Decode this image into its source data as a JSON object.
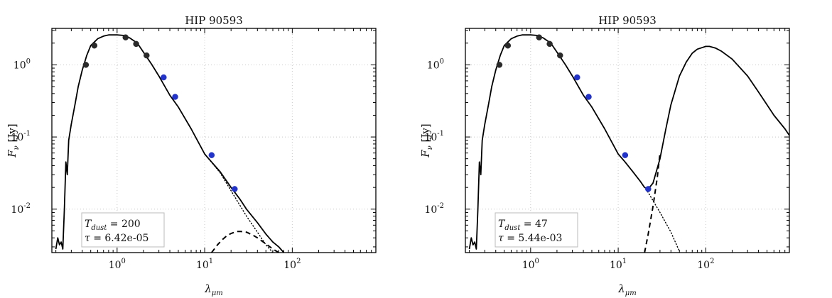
{
  "chart_data": [
    {
      "type": "line",
      "title": "HIP 90593",
      "xlabel": "λ_{μm}",
      "ylabel": "F_ν [Jy]",
      "xscale": "log",
      "yscale": "log",
      "xlim": [
        0.18,
        900
      ],
      "ylim": [
        0.0025,
        3.2
      ],
      "grid": true,
      "x_ticks": [
        {
          "value": 1,
          "base": "10",
          "exp": "0"
        },
        {
          "value": 10,
          "base": "10",
          "exp": "1"
        },
        {
          "value": 100,
          "base": "10",
          "exp": "2"
        }
      ],
      "y_ticks": [
        {
          "value": 0.01,
          "base": "10",
          "exp": "-2"
        },
        {
          "value": 0.1,
          "base": "10",
          "exp": "-1"
        },
        {
          "value": 1,
          "base": "10",
          "exp": "0"
        }
      ],
      "legend_box": {
        "line1_symbol": "T",
        "line1_sub": "dust",
        "line1_value": "= 200",
        "line2_symbol": "τ",
        "line2_value": "= 6.42e-05",
        "placement": "bottom-left"
      },
      "series": [
        {
          "style": "solid",
          "color": "#000000",
          "x": [
            0.2,
            0.21,
            0.22,
            0.23,
            0.24,
            0.25,
            0.26,
            0.27,
            0.28,
            0.3,
            0.33,
            0.36,
            0.4,
            0.45,
            0.5,
            0.6,
            0.7,
            0.8,
            0.9,
            1.0,
            1.2,
            1.4,
            1.7,
            2.0,
            2.5,
            3.0,
            4.0,
            5.0,
            7.0,
            10.0,
            12.0,
            15.0,
            20.0,
            25.0,
            30.0,
            40.0,
            50.0,
            60.0,
            70.0,
            80.0
          ],
          "y": [
            0.0028,
            0.004,
            0.0032,
            0.0035,
            0.0028,
            0.01,
            0.045,
            0.03,
            0.09,
            0.15,
            0.28,
            0.5,
            0.85,
            1.35,
            1.85,
            2.3,
            2.5,
            2.6,
            2.6,
            2.6,
            2.55,
            2.35,
            2.0,
            1.5,
            1.0,
            0.7,
            0.38,
            0.26,
            0.13,
            0.058,
            0.045,
            0.033,
            0.02,
            0.014,
            0.01,
            0.0065,
            0.0045,
            0.0035,
            0.003,
            0.0025
          ]
        },
        {
          "style": "dotted",
          "color": "#000000",
          "x": [
            10.0,
            15.0,
            20.0,
            30.0,
            40.0,
            50.0,
            60.0
          ],
          "y": [
            0.058,
            0.032,
            0.018,
            0.008,
            0.0048,
            0.0032,
            0.0025
          ]
        },
        {
          "style": "dashed",
          "color": "#000000",
          "x": [
            12.0,
            14.0,
            16.0,
            18.0,
            20.0,
            23.0,
            26.0,
            30.0,
            35.0,
            40.0,
            50.0,
            60.0,
            70.0
          ],
          "y": [
            0.0025,
            0.0032,
            0.0038,
            0.0043,
            0.0046,
            0.0049,
            0.0049,
            0.0048,
            0.0044,
            0.004,
            0.0033,
            0.0028,
            0.0025
          ]
        }
      ],
      "points": [
        {
          "x": 0.44,
          "y": 1.0,
          "color": "#2a2a2a"
        },
        {
          "x": 0.55,
          "y": 1.85,
          "color": "#2a2a2a"
        },
        {
          "x": 1.25,
          "y": 2.4,
          "color": "#2a2a2a"
        },
        {
          "x": 1.65,
          "y": 1.95,
          "color": "#2a2a2a"
        },
        {
          "x": 2.17,
          "y": 1.35,
          "color": "#2a2a2a"
        },
        {
          "x": 3.4,
          "y": 0.67,
          "color": "#2233cc"
        },
        {
          "x": 4.6,
          "y": 0.36,
          "color": "#2233cc"
        },
        {
          "x": 12.0,
          "y": 0.056,
          "color": "#2233cc"
        },
        {
          "x": 22.0,
          "y": 0.019,
          "color": "#2233cc"
        }
      ]
    },
    {
      "type": "line",
      "title": "HIP 90593",
      "xlabel": "λ_{μm}",
      "ylabel": "F_ν [Jy]",
      "xscale": "log",
      "yscale": "log",
      "xlim": [
        0.18,
        900
      ],
      "ylim": [
        0.0025,
        3.2
      ],
      "grid": true,
      "x_ticks": [
        {
          "value": 1,
          "base": "10",
          "exp": "0"
        },
        {
          "value": 10,
          "base": "10",
          "exp": "1"
        },
        {
          "value": 100,
          "base": "10",
          "exp": "2"
        }
      ],
      "y_ticks": [
        {
          "value": 0.01,
          "base": "10",
          "exp": "-2"
        },
        {
          "value": 0.1,
          "base": "10",
          "exp": "-1"
        },
        {
          "value": 1,
          "base": "10",
          "exp": "0"
        }
      ],
      "legend_box": {
        "line1_symbol": "T",
        "line1_sub": "dust",
        "line1_value": "= 47",
        "line2_symbol": "τ",
        "line2_value": "= 5.44e-03",
        "placement": "bottom-left"
      },
      "series": [
        {
          "style": "solid",
          "color": "#000000",
          "x": [
            0.2,
            0.21,
            0.22,
            0.23,
            0.24,
            0.25,
            0.26,
            0.27,
            0.28,
            0.3,
            0.33,
            0.36,
            0.4,
            0.45,
            0.5,
            0.6,
            0.7,
            0.8,
            0.9,
            1.0,
            1.2,
            1.4,
            1.7,
            2.0,
            2.5,
            3.0,
            4.0,
            5.0,
            7.0,
            10.0,
            12.0,
            15.0,
            18.0,
            20.0,
            22.0,
            25.0,
            30.0,
            35.0,
            40.0,
            50.0,
            60.0,
            70.0,
            80.0,
            100.0,
            110.0,
            130.0,
            150.0,
            200.0,
            300.0,
            400.0,
            500.0,
            600.0,
            800.0,
            900.0
          ],
          "y": [
            0.0028,
            0.004,
            0.0032,
            0.0035,
            0.0028,
            0.01,
            0.045,
            0.03,
            0.09,
            0.15,
            0.28,
            0.5,
            0.85,
            1.35,
            1.85,
            2.3,
            2.5,
            2.6,
            2.6,
            2.6,
            2.55,
            2.35,
            2.0,
            1.5,
            1.0,
            0.7,
            0.38,
            0.26,
            0.13,
            0.058,
            0.045,
            0.032,
            0.024,
            0.02,
            0.019,
            0.023,
            0.05,
            0.13,
            0.28,
            0.7,
            1.1,
            1.45,
            1.65,
            1.8,
            1.8,
            1.7,
            1.55,
            1.2,
            0.7,
            0.42,
            0.28,
            0.2,
            0.13,
            0.105
          ]
        },
        {
          "style": "dotted",
          "color": "#000000",
          "x": [
            18.0,
            22.0,
            30.0,
            40.0,
            50.0
          ],
          "y": [
            0.024,
            0.017,
            0.009,
            0.0048,
            0.0026
          ]
        },
        {
          "style": "dashed",
          "color": "#000000",
          "x": [
            20.0,
            22.0,
            25.0,
            28.0,
            30.0
          ],
          "y": [
            0.0025,
            0.0045,
            0.011,
            0.028,
            0.06
          ]
        }
      ],
      "points": [
        {
          "x": 0.44,
          "y": 1.0,
          "color": "#2a2a2a"
        },
        {
          "x": 0.55,
          "y": 1.85,
          "color": "#2a2a2a"
        },
        {
          "x": 1.25,
          "y": 2.4,
          "color": "#2a2a2a"
        },
        {
          "x": 1.65,
          "y": 1.95,
          "color": "#2a2a2a"
        },
        {
          "x": 2.17,
          "y": 1.35,
          "color": "#2a2a2a"
        },
        {
          "x": 3.4,
          "y": 0.67,
          "color": "#2233cc"
        },
        {
          "x": 4.6,
          "y": 0.36,
          "color": "#2233cc"
        },
        {
          "x": 12.0,
          "y": 0.056,
          "color": "#2233cc"
        },
        {
          "x": 22.0,
          "y": 0.019,
          "color": "#2233cc"
        }
      ]
    }
  ]
}
